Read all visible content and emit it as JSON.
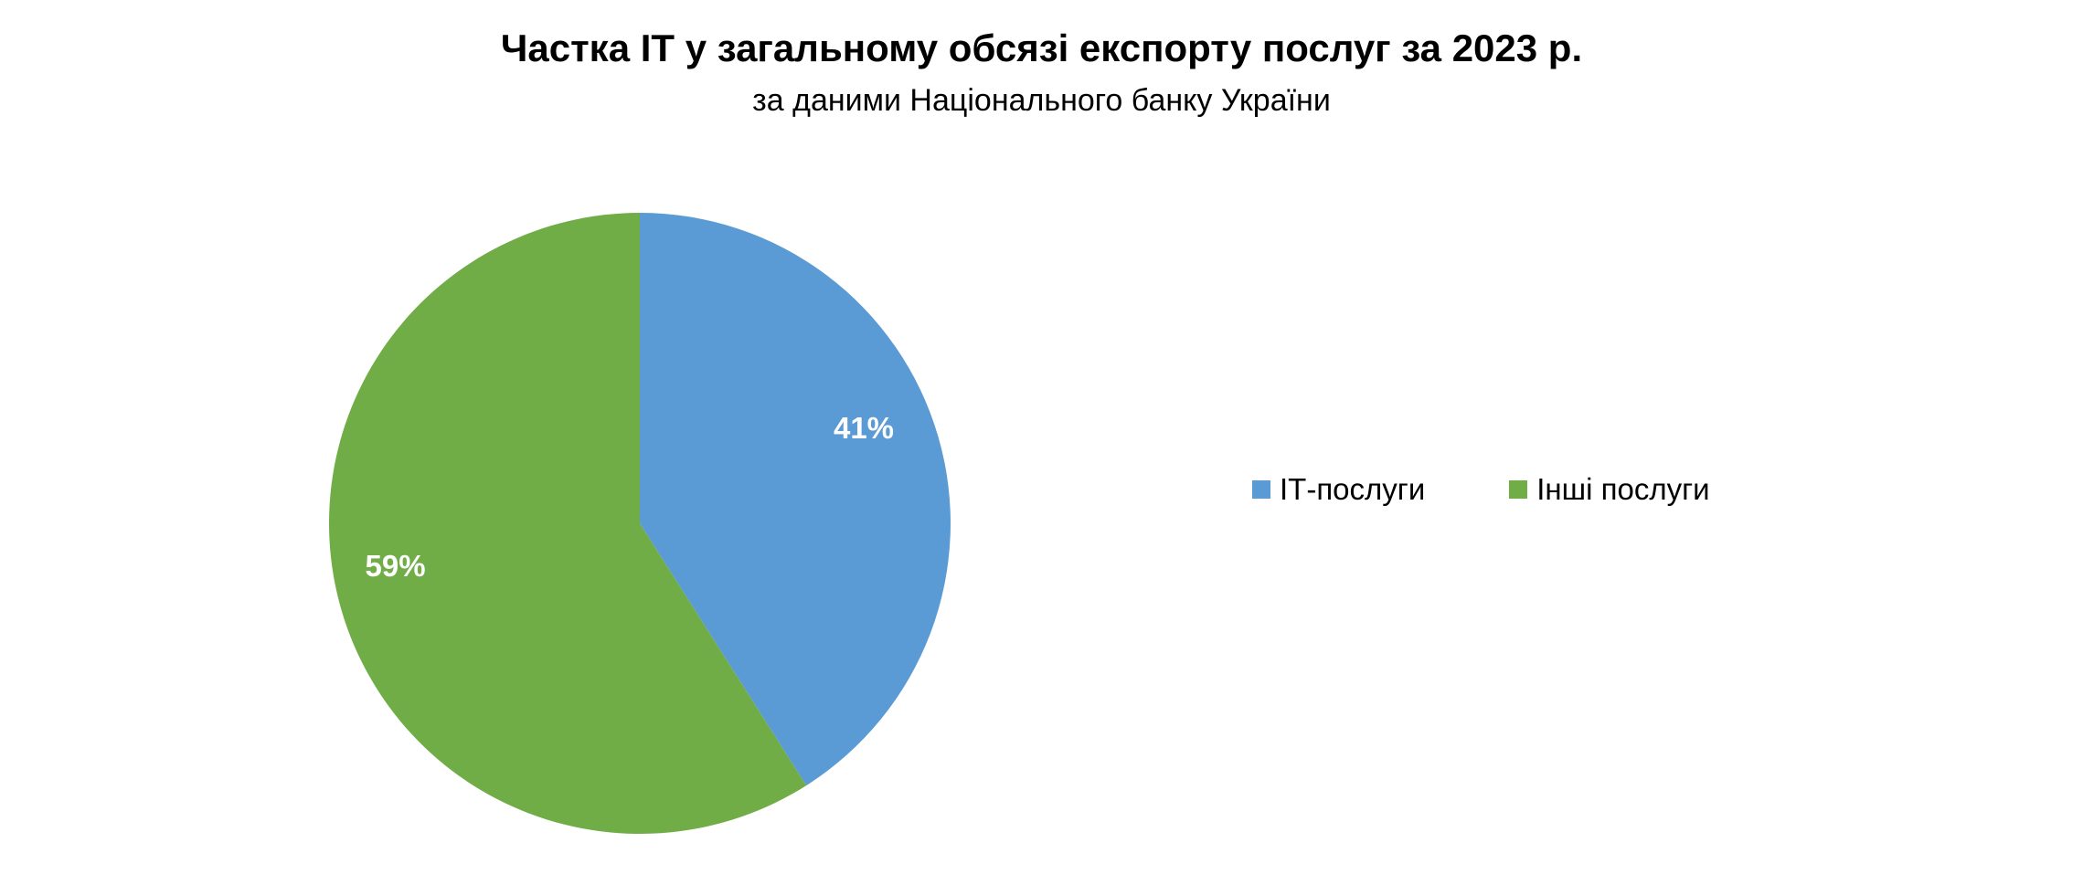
{
  "chart_data": {
    "type": "pie",
    "title": "Частка IT у загальному обсязі експорту послуг за 2023 р.",
    "subtitle": "за даними Національного банку України",
    "slices": [
      {
        "name": "ІТ-послуги",
        "value": 41,
        "label": "41%",
        "color": "#5b9bd5"
      },
      {
        "name": "Інші послуги",
        "value": 59,
        "label": "59%",
        "color": "#70ad47"
      }
    ],
    "legend": {
      "position": "right",
      "items": [
        {
          "name": "ІТ-послуги",
          "color": "#5b9bd5"
        },
        {
          "name": "Інші послуги",
          "color": "#70ad47"
        }
      ]
    }
  }
}
